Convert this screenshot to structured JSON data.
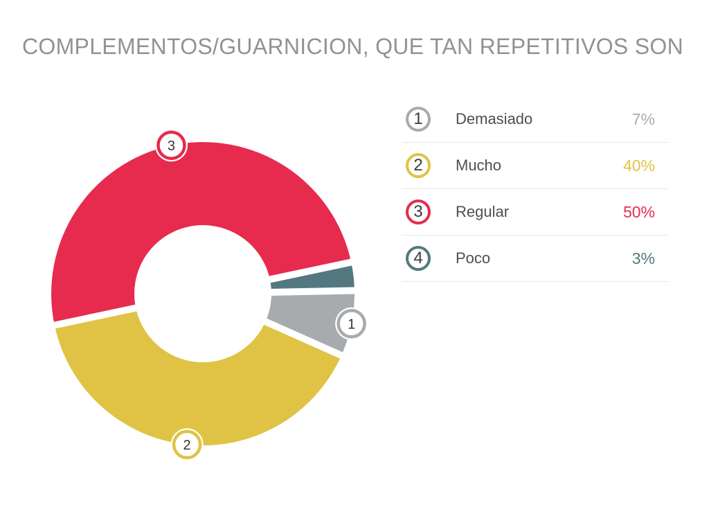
{
  "chart_data": {
    "type": "donut",
    "title": "COMPLEMENTOS/GUARNICION, QUE TAN REPETITIVOS SON",
    "unit": "percent",
    "legend_position": "right",
    "start_angle_deg": 12,
    "rotation_direction": "counterclockwise",
    "inner_radius_ratio": 0.45,
    "draw_order_ranks": [
      3,
      2,
      1,
      4
    ],
    "segments": [
      {
        "rank": 1,
        "label": "Demasiado",
        "value": 7,
        "pct_label": "7%",
        "color": "#A8ABAE",
        "marker_on_chart": true
      },
      {
        "rank": 2,
        "label": "Mucho",
        "value": 40,
        "pct_label": "40%",
        "color": "#E0C345",
        "marker_on_chart": true
      },
      {
        "rank": 3,
        "label": "Regular",
        "value": 50,
        "pct_label": "50%",
        "color": "#E62B4E",
        "marker_on_chart": true
      },
      {
        "rank": 4,
        "label": "Poco",
        "value": 3,
        "pct_label": "3%",
        "color": "#54787F",
        "marker_on_chart": false
      }
    ]
  },
  "colors": {
    "background": "#FFFFFF",
    "title_text": "#929292",
    "legend_label_text": "#4E4E4E",
    "divider": "#E7E7E7",
    "marker_digit": "#333333"
  }
}
